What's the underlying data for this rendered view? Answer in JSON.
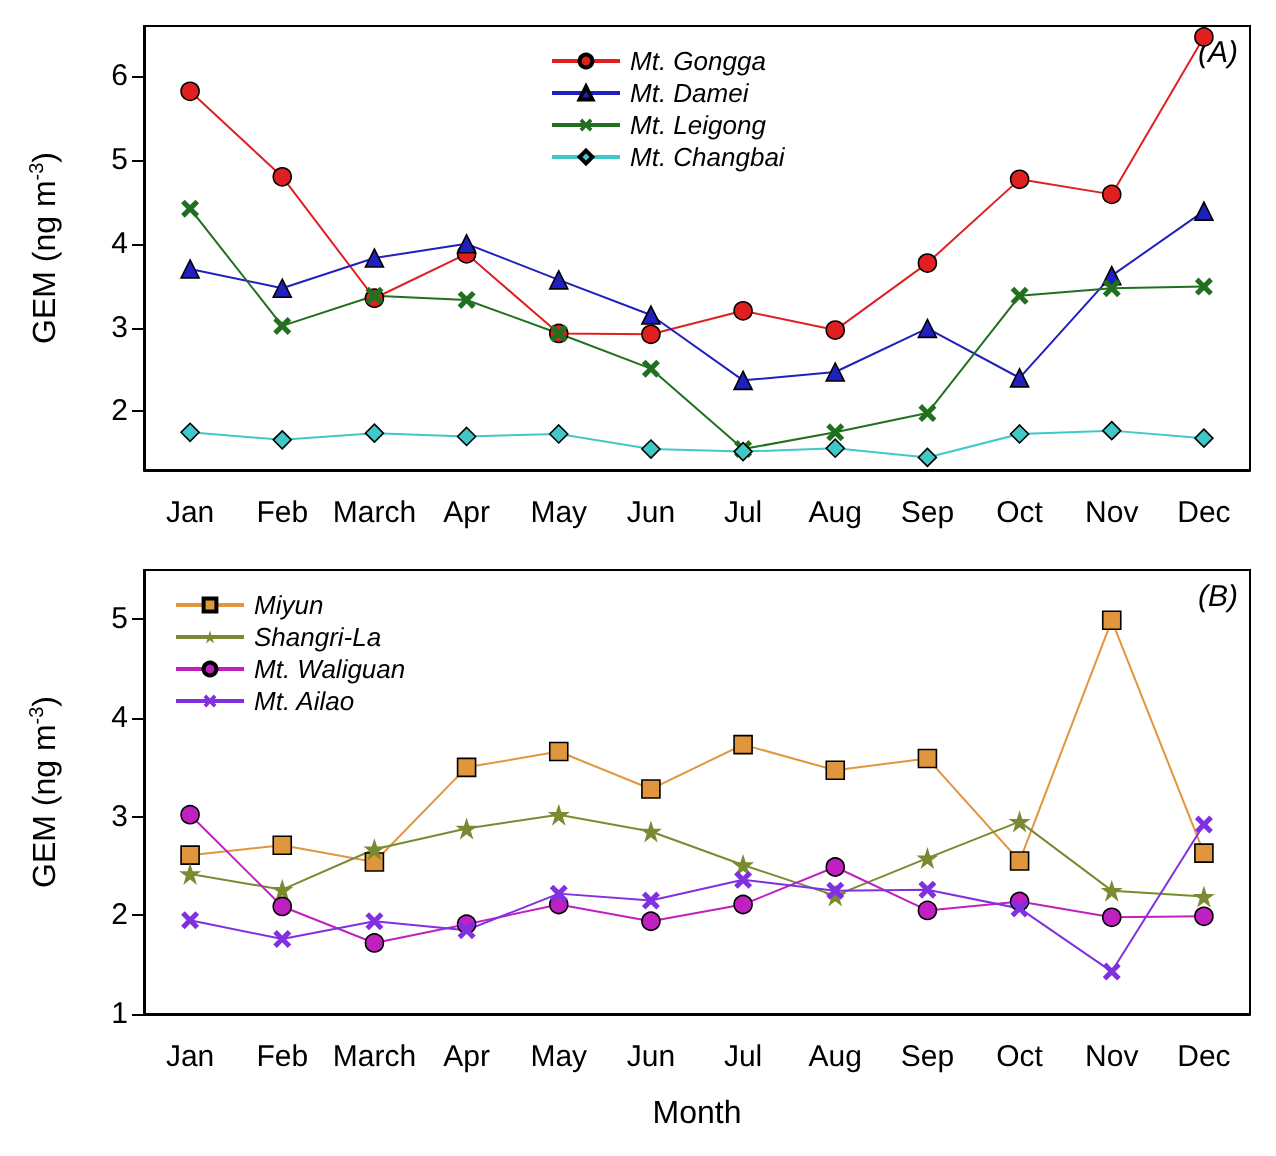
{
  "chart_data": [
    {
      "type": "line",
      "ylabel": "GEM (ng m$^{-3}$)",
      "categories": [
        "Jan",
        "Feb",
        "March",
        "Apr",
        "May",
        "Jun",
        "Jul",
        "Aug",
        "Sep",
        "Oct",
        "Nov",
        "Dec"
      ],
      "ylim": [
        1.3,
        6.6
      ],
      "yticks": [
        2,
        3,
        4,
        5,
        6
      ],
      "grid": false,
      "legend": "top",
      "annotations": [
        "(A)"
      ],
      "series": [
        {
          "name": "Mt. Gongga",
          "color": "#e02020",
          "marker": "circle",
          "values": [
            5.82,
            4.8,
            3.35,
            3.88,
            2.93,
            2.92,
            3.2,
            2.97,
            3.77,
            4.77,
            4.59,
            6.47
          ]
        },
        {
          "name": "Mt. Damei",
          "color": "#2020c0",
          "marker": "triangle",
          "values": [
            3.7,
            3.47,
            3.83,
            4.0,
            3.57,
            3.15,
            2.37,
            2.47,
            2.99,
            2.4,
            3.62,
            4.39
          ]
        },
        {
          "name": "Mt. Leigong",
          "color": "#207020",
          "marker": "cross",
          "values": [
            4.42,
            3.02,
            3.38,
            3.33,
            2.93,
            2.51,
            1.55,
            1.75,
            1.98,
            3.38,
            3.47,
            3.49
          ]
        },
        {
          "name": "Mt. Changbai",
          "color": "#40c8c8",
          "marker": "diamond",
          "values": [
            1.75,
            1.66,
            1.74,
            1.7,
            1.73,
            1.55,
            1.52,
            1.56,
            1.45,
            1.73,
            1.77,
            1.68
          ]
        }
      ]
    },
    {
      "type": "line",
      "xlabel": "Month",
      "ylabel": "GEM (ng m$^{-3}$)",
      "categories": [
        "Jan",
        "Feb",
        "March",
        "Apr",
        "May",
        "Jun",
        "Jul",
        "Aug",
        "Sep",
        "Oct",
        "Nov",
        "Dec"
      ],
      "ylim": [
        1,
        5.5
      ],
      "yticks": [
        1,
        2,
        3,
        4,
        5
      ],
      "grid": false,
      "legend": "top left",
      "annotations": [
        "(B)"
      ],
      "series": [
        {
          "name": "Miyun",
          "color": "#e0963c",
          "marker": "square",
          "values": [
            2.61,
            2.71,
            2.54,
            3.5,
            3.66,
            3.28,
            3.73,
            3.47,
            3.59,
            2.55,
            4.99,
            2.63
          ]
        },
        {
          "name": "Shangri-La",
          "color": "#7a8a30",
          "marker": "star",
          "values": [
            2.42,
            2.26,
            2.67,
            2.88,
            3.02,
            2.85,
            2.51,
            2.2,
            2.58,
            2.95,
            2.25,
            2.19
          ]
        },
        {
          "name": "Mt. Waliguan",
          "color": "#c020c0",
          "marker": "circle",
          "values": [
            3.02,
            2.09,
            1.72,
            1.91,
            2.11,
            1.94,
            2.11,
            2.49,
            2.05,
            2.14,
            1.98,
            1.99
          ]
        },
        {
          "name": "Mt. Ailao",
          "color": "#8030e0",
          "marker": "cross",
          "values": [
            1.95,
            1.76,
            1.94,
            1.85,
            2.22,
            2.15,
            2.36,
            2.25,
            2.26,
            2.07,
            1.43,
            2.92
          ]
        }
      ]
    }
  ]
}
